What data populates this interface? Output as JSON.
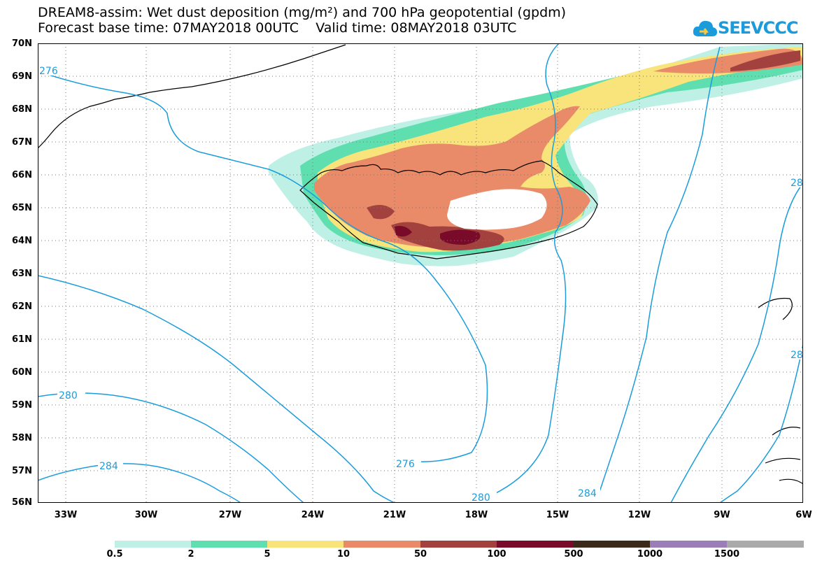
{
  "title": {
    "line1": "DREAM8-assim: Wet dust deposition (mg/m²) and 700 hPa geopotential (gpdm)",
    "line2": "Forecast base time: 07MAY2018 00UTC    Valid time: 08MAY2018 03UTC"
  },
  "logo": {
    "text": "SEEVCCC",
    "icon": "cloud-icon",
    "color": "#1a9cdc"
  },
  "map": {
    "lat_labels": [
      "70N",
      "69N",
      "68N",
      "67N",
      "66N",
      "65N",
      "64N",
      "63N",
      "62N",
      "61N",
      "60N",
      "59N",
      "58N",
      "57N",
      "56N"
    ],
    "lon_labels": [
      "33W",
      "30W",
      "27W",
      "24W",
      "21W",
      "18W",
      "15W",
      "12W",
      "9W",
      "6W"
    ],
    "contour_labels": [
      "276",
      "280",
      "284",
      "276",
      "280",
      "284",
      "28",
      "28"
    ],
    "contour_color": "#1a9cdc",
    "gridline_style": "dotted"
  },
  "colorbar": {
    "labels": [
      "0.5",
      "2",
      "5",
      "10",
      "50",
      "100",
      "500",
      "1000",
      "1500"
    ],
    "colors": [
      "#bff0e6",
      "#5fdfb0",
      "#f8e47a",
      "#e98b69",
      "#a3413f",
      "#7a0a2a",
      "#3b2a1a",
      "#9b7db8",
      "#aaaaaa"
    ]
  }
}
